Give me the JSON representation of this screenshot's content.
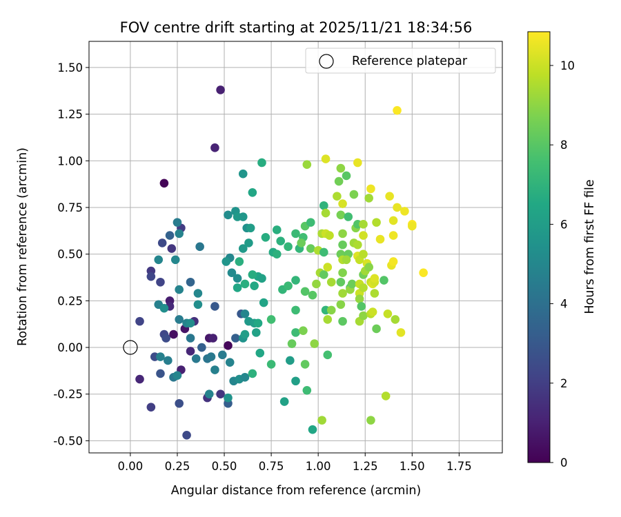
{
  "chart_data": {
    "type": "scatter",
    "title": "FOV centre drift starting at 2025/11/21 18:34:56",
    "xlabel": "Angular distance from reference (arcmin)",
    "ylabel": "Rotation from reference (arcmin)",
    "xlim": [
      -0.22,
      1.98
    ],
    "ylim": [
      -0.565,
      1.64
    ],
    "xticks": [
      "0.00",
      "0.25",
      "0.50",
      "0.75",
      "1.00",
      "1.25",
      "1.50",
      "1.75"
    ],
    "yticks": [
      "-0.50",
      "-0.25",
      "0.00",
      "0.25",
      "0.50",
      "0.75",
      "1.00",
      "1.25",
      "1.50"
    ],
    "grid": true,
    "legend": {
      "position": "top-right",
      "entries": [
        "Reference platepar"
      ]
    },
    "reference_point": {
      "x": 0.0,
      "y": 0.0,
      "label": "Reference platepar",
      "marker": "open-circle"
    },
    "colorbar": {
      "label": "Hours from first FF file",
      "range": [
        0,
        10.85
      ],
      "ticks": [
        "0",
        "2",
        "4",
        "6",
        "8",
        "10"
      ],
      "colormap": "viridis",
      "colormap_stops": [
        "#440154",
        "#482475",
        "#414487",
        "#355f8d",
        "#2a788e",
        "#21918c",
        "#22a884",
        "#44bf70",
        "#7ad151",
        "#bddf26",
        "#fde725"
      ]
    },
    "points": [
      {
        "x": 0.18,
        "y": 0.88,
        "c": 0.1
      },
      {
        "x": 0.48,
        "y": 1.38,
        "c": 1.0
      },
      {
        "x": 0.45,
        "y": 1.07,
        "c": 1.1
      },
      {
        "x": 0.52,
        "y": 0.01,
        "c": 0.2
      },
      {
        "x": 0.23,
        "y": 0.07,
        "c": 0.4
      },
      {
        "x": 0.29,
        "y": 0.1,
        "c": 0.6
      },
      {
        "x": 0.21,
        "y": 0.25,
        "c": 0.9
      },
      {
        "x": 0.21,
        "y": 0.22,
        "c": 1.3
      },
      {
        "x": 0.42,
        "y": 0.05,
        "c": 0.7
      },
      {
        "x": 0.44,
        "y": 0.05,
        "c": 1.0
      },
      {
        "x": 0.27,
        "y": -0.12,
        "c": 1.0
      },
      {
        "x": 0.32,
        "y": -0.02,
        "c": 1.2
      },
      {
        "x": 0.34,
        "y": 0.14,
        "c": 1.5
      },
      {
        "x": 0.41,
        "y": -0.27,
        "c": 1.6
      },
      {
        "x": 0.48,
        "y": -0.25,
        "c": 1.7
      },
      {
        "x": 0.05,
        "y": -0.17,
        "c": 1.2
      },
      {
        "x": 0.11,
        "y": -0.32,
        "c": 2.0
      },
      {
        "x": 0.3,
        "y": -0.47,
        "c": 2.4
      },
      {
        "x": 0.26,
        "y": -0.3,
        "c": 2.6
      },
      {
        "x": 0.05,
        "y": 0.14,
        "c": 2.2
      },
      {
        "x": 0.13,
        "y": -0.05,
        "c": 2.5
      },
      {
        "x": 0.16,
        "y": -0.14,
        "c": 2.8
      },
      {
        "x": 0.18,
        "y": 0.07,
        "c": 2.3
      },
      {
        "x": 0.19,
        "y": 0.05,
        "c": 2.5
      },
      {
        "x": 0.11,
        "y": 0.41,
        "c": 1.8
      },
      {
        "x": 0.11,
        "y": 0.38,
        "c": 2.3
      },
      {
        "x": 0.16,
        "y": 0.35,
        "c": 2.2
      },
      {
        "x": 0.17,
        "y": 0.56,
        "c": 2.4
      },
      {
        "x": 0.22,
        "y": 0.53,
        "c": 1.7
      },
      {
        "x": 0.27,
        "y": 0.64,
        "c": 1.9
      },
      {
        "x": 0.21,
        "y": 0.6,
        "c": 3.4
      },
      {
        "x": 0.45,
        "y": 0.22,
        "c": 3.0
      },
      {
        "x": 0.52,
        "y": -0.3,
        "c": 3.2
      },
      {
        "x": 0.38,
        "y": 0.0,
        "c": 3.3
      },
      {
        "x": 0.56,
        "y": 0.05,
        "c": 3.3
      },
      {
        "x": 0.32,
        "y": 0.35,
        "c": 3.5
      },
      {
        "x": 0.59,
        "y": 0.18,
        "c": 3.0
      },
      {
        "x": 0.37,
        "y": 0.54,
        "c": 4.3
      },
      {
        "x": 0.25,
        "y": 0.67,
        "c": 4.5
      },
      {
        "x": 0.26,
        "y": 0.61,
        "c": 4.8
      },
      {
        "x": 0.15,
        "y": 0.47,
        "c": 4.9
      },
      {
        "x": 0.24,
        "y": 0.47,
        "c": 5.0
      },
      {
        "x": 0.15,
        "y": 0.23,
        "c": 4.7
      },
      {
        "x": 0.18,
        "y": 0.21,
        "c": 5.3
      },
      {
        "x": 0.26,
        "y": 0.31,
        "c": 4.8
      },
      {
        "x": 0.36,
        "y": 0.29,
        "c": 5.0
      },
      {
        "x": 0.36,
        "y": 0.23,
        "c": 5.3
      },
      {
        "x": 0.26,
        "y": 0.15,
        "c": 4.5
      },
      {
        "x": 0.3,
        "y": 0.13,
        "c": 4.8
      },
      {
        "x": 0.32,
        "y": 0.13,
        "c": 5.2
      },
      {
        "x": 0.32,
        "y": 0.05,
        "c": 4.3
      },
      {
        "x": 0.35,
        "y": -0.06,
        "c": 4.4
      },
      {
        "x": 0.16,
        "y": -0.05,
        "c": 4.7
      },
      {
        "x": 0.2,
        "y": -0.07,
        "c": 4.6
      },
      {
        "x": 0.23,
        "y": -0.16,
        "c": 4.3
      },
      {
        "x": 0.25,
        "y": -0.15,
        "c": 4.9
      },
      {
        "x": 0.41,
        "y": -0.06,
        "c": 4.2
      },
      {
        "x": 0.43,
        "y": -0.05,
        "c": 4.4
      },
      {
        "x": 0.42,
        "y": -0.25,
        "c": 4.8
      },
      {
        "x": 0.45,
        "y": -0.12,
        "c": 4.7
      },
      {
        "x": 0.49,
        "y": -0.04,
        "c": 4.5
      },
      {
        "x": 0.53,
        "y": -0.08,
        "c": 4.8
      },
      {
        "x": 0.52,
        "y": -0.27,
        "c": 5.5
      },
      {
        "x": 0.55,
        "y": -0.18,
        "c": 4.9
      },
      {
        "x": 0.58,
        "y": -0.17,
        "c": 5.3
      },
      {
        "x": 0.61,
        "y": -0.16,
        "c": 5.0
      },
      {
        "x": 0.53,
        "y": 0.48,
        "c": 5.0
      },
      {
        "x": 0.51,
        "y": 0.46,
        "c": 5.6
      },
      {
        "x": 0.54,
        "y": 0.4,
        "c": 5.1
      },
      {
        "x": 0.57,
        "y": 0.37,
        "c": 5.2
      },
      {
        "x": 0.52,
        "y": 0.71,
        "c": 5.2
      },
      {
        "x": 0.56,
        "y": 0.73,
        "c": 5.5
      },
      {
        "x": 0.57,
        "y": 0.7,
        "c": 5.8
      },
      {
        "x": 0.6,
        "y": 0.7,
        "c": 5.7
      },
      {
        "x": 0.6,
        "y": 0.93,
        "c": 5.6
      },
      {
        "x": 0.62,
        "y": 0.64,
        "c": 5.4
      },
      {
        "x": 0.64,
        "y": 0.64,
        "c": 6.0
      },
      {
        "x": 0.6,
        "y": 0.53,
        "c": 5.8
      },
      {
        "x": 0.63,
        "y": 0.56,
        "c": 5.9
      },
      {
        "x": 0.61,
        "y": 0.18,
        "c": 4.9
      },
      {
        "x": 0.63,
        "y": 0.14,
        "c": 5.8
      },
      {
        "x": 0.57,
        "y": 0.32,
        "c": 6.4
      },
      {
        "x": 0.66,
        "y": 0.13,
        "c": 6.0
      },
      {
        "x": 0.68,
        "y": 0.13,
        "c": 6.5
      },
      {
        "x": 0.6,
        "y": 0.05,
        "c": 5.5
      },
      {
        "x": 0.61,
        "y": 0.07,
        "c": 6.0
      },
      {
        "x": 0.67,
        "y": 0.08,
        "c": 6.2
      },
      {
        "x": 0.69,
        "y": -0.03,
        "c": 6.4
      },
      {
        "x": 0.71,
        "y": 0.24,
        "c": 6.3
      },
      {
        "x": 0.68,
        "y": 0.38,
        "c": 6.3
      },
      {
        "x": 0.61,
        "y": 0.34,
        "c": 6.8
      },
      {
        "x": 0.65,
        "y": 0.39,
        "c": 6.7
      },
      {
        "x": 0.66,
        "y": 0.33,
        "c": 6.5
      },
      {
        "x": 0.7,
        "y": 0.37,
        "c": 6.2
      },
      {
        "x": 0.58,
        "y": 0.46,
        "c": 6.8
      },
      {
        "x": 0.65,
        "y": 0.83,
        "c": 6.4
      },
      {
        "x": 0.7,
        "y": 0.99,
        "c": 6.7
      },
      {
        "x": 0.72,
        "y": 0.59,
        "c": 6.7
      },
      {
        "x": 0.65,
        "y": -0.14,
        "c": 6.9
      },
      {
        "x": 0.75,
        "y": -0.09,
        "c": 7.3
      },
      {
        "x": 0.75,
        "y": 0.15,
        "c": 7.5
      },
      {
        "x": 0.76,
        "y": 0.51,
        "c": 6.6
      },
      {
        "x": 0.78,
        "y": 0.63,
        "c": 6.8
      },
      {
        "x": 0.78,
        "y": 0.5,
        "c": 6.9
      },
      {
        "x": 0.8,
        "y": 0.57,
        "c": 6.9
      },
      {
        "x": 0.81,
        "y": 0.31,
        "c": 7.1
      },
      {
        "x": 0.84,
        "y": 0.54,
        "c": 7.1
      },
      {
        "x": 0.82,
        "y": -0.29,
        "c": 6.2
      },
      {
        "x": 0.85,
        "y": -0.07,
        "c": 6.0
      },
      {
        "x": 0.84,
        "y": 0.33,
        "c": 7.3
      },
      {
        "x": 0.88,
        "y": 0.36,
        "c": 7.1
      },
      {
        "x": 0.88,
        "y": -0.18,
        "c": 6.1
      },
      {
        "x": 0.88,
        "y": 0.08,
        "c": 7.4
      },
      {
        "x": 0.88,
        "y": 0.2,
        "c": 7.4
      },
      {
        "x": 0.86,
        "y": 0.02,
        "c": 8.3
      },
      {
        "x": 0.88,
        "y": 0.61,
        "c": 7.3
      },
      {
        "x": 0.9,
        "y": 0.53,
        "c": 7.1
      },
      {
        "x": 0.92,
        "y": 0.59,
        "c": 7.5
      },
      {
        "x": 0.91,
        "y": 0.56,
        "c": 8.4
      },
      {
        "x": 0.93,
        "y": 0.65,
        "c": 8.0
      },
      {
        "x": 0.92,
        "y": 0.09,
        "c": 8.7
      },
      {
        "x": 0.93,
        "y": 0.3,
        "c": 7.9
      },
      {
        "x": 0.93,
        "y": -0.09,
        "c": 8.2
      },
      {
        "x": 0.94,
        "y": -0.23,
        "c": 7.4
      },
      {
        "x": 0.97,
        "y": -0.44,
        "c": 6.4
      },
      {
        "x": 0.94,
        "y": 0.98,
        "c": 9.2
      },
      {
        "x": 0.96,
        "y": 0.67,
        "c": 7.4
      },
      {
        "x": 0.96,
        "y": 0.53,
        "c": 8.3
      },
      {
        "x": 0.97,
        "y": 0.28,
        "c": 8.0
      },
      {
        "x": 0.98,
        "y": 0.02,
        "c": 9.0
      },
      {
        "x": 0.99,
        "y": 0.34,
        "c": 9.1
      },
      {
        "x": 1.0,
        "y": 0.52,
        "c": 9.5
      },
      {
        "x": 1.01,
        "y": 0.4,
        "c": 9.4
      },
      {
        "x": 1.02,
        "y": 0.61,
        "c": 9.5
      },
      {
        "x": 1.03,
        "y": 0.39,
        "c": 8.2
      },
      {
        "x": 1.03,
        "y": 0.51,
        "c": 7.4
      },
      {
        "x": 1.04,
        "y": 0.61,
        "c": 10.0
      },
      {
        "x": 1.04,
        "y": 1.01,
        "c": 10.3
      },
      {
        "x": 1.03,
        "y": 0.76,
        "c": 7.0
      },
      {
        "x": 1.04,
        "y": 0.2,
        "c": 7.1
      },
      {
        "x": 1.04,
        "y": 0.72,
        "c": 9.4
      },
      {
        "x": 1.05,
        "y": -0.04,
        "c": 7.6
      },
      {
        "x": 1.05,
        "y": 0.15,
        "c": 9.4
      },
      {
        "x": 1.05,
        "y": 0.43,
        "c": 10.0
      },
      {
        "x": 1.06,
        "y": 0.6,
        "c": 9.8
      },
      {
        "x": 1.07,
        "y": 0.2,
        "c": 8.9
      },
      {
        "x": 1.07,
        "y": 0.35,
        "c": 9.4
      },
      {
        "x": 1.02,
        "y": -0.39,
        "c": 9.3
      },
      {
        "x": 1.1,
        "y": 0.81,
        "c": 9.5
      },
      {
        "x": 1.11,
        "y": 0.89,
        "c": 8.5
      },
      {
        "x": 1.12,
        "y": 0.71,
        "c": 8.6
      },
      {
        "x": 1.12,
        "y": 0.96,
        "c": 9.0
      },
      {
        "x": 1.12,
        "y": 0.5,
        "c": 8.4
      },
      {
        "x": 1.12,
        "y": 0.35,
        "c": 8.2
      },
      {
        "x": 1.12,
        "y": 0.23,
        "c": 8.9
      },
      {
        "x": 1.13,
        "y": 0.77,
        "c": 10.2
      },
      {
        "x": 1.13,
        "y": 0.61,
        "c": 9.0
      },
      {
        "x": 1.13,
        "y": 0.55,
        "c": 8.3
      },
      {
        "x": 1.13,
        "y": 0.47,
        "c": 9.6
      },
      {
        "x": 1.13,
        "y": 0.4,
        "c": 8.8
      },
      {
        "x": 1.13,
        "y": 0.29,
        "c": 9.3
      },
      {
        "x": 1.13,
        "y": 0.14,
        "c": 8.1
      },
      {
        "x": 1.15,
        "y": 0.92,
        "c": 8.0
      },
      {
        "x": 1.16,
        "y": 0.7,
        "c": 7.5
      },
      {
        "x": 1.16,
        "y": 0.5,
        "c": 8.3
      },
      {
        "x": 1.15,
        "y": 0.47,
        "c": 9.3
      },
      {
        "x": 1.17,
        "y": 0.32,
        "c": 8.0
      },
      {
        "x": 1.17,
        "y": 0.31,
        "c": 9.1
      },
      {
        "x": 1.18,
        "y": 0.34,
        "c": 8.4
      },
      {
        "x": 1.19,
        "y": 0.82,
        "c": 8.7
      },
      {
        "x": 1.19,
        "y": 0.56,
        "c": 9.3
      },
      {
        "x": 1.2,
        "y": 0.64,
        "c": 8.9
      },
      {
        "x": 1.21,
        "y": 0.99,
        "c": 10.5
      },
      {
        "x": 1.21,
        "y": 0.66,
        "c": 7.9
      },
      {
        "x": 1.21,
        "y": 0.55,
        "c": 9.5
      },
      {
        "x": 1.21,
        "y": 0.49,
        "c": 10.3
      },
      {
        "x": 1.22,
        "y": 0.29,
        "c": 10.0
      },
      {
        "x": 1.22,
        "y": 0.26,
        "c": 9.1
      },
      {
        "x": 1.22,
        "y": 0.14,
        "c": 9.4
      },
      {
        "x": 1.22,
        "y": 0.34,
        "c": 9.9
      },
      {
        "x": 1.22,
        "y": 0.47,
        "c": 9.9
      },
      {
        "x": 1.23,
        "y": 0.22,
        "c": 7.9
      },
      {
        "x": 1.24,
        "y": 0.17,
        "c": 9.0
      },
      {
        "x": 1.24,
        "y": 0.6,
        "c": 10.1
      },
      {
        "x": 1.24,
        "y": 0.66,
        "c": 9.4
      },
      {
        "x": 1.24,
        "y": 0.5,
        "c": 9.7
      },
      {
        "x": 1.24,
        "y": 0.39,
        "c": 8.5
      },
      {
        "x": 1.24,
        "y": 0.32,
        "c": 9.6
      },
      {
        "x": 1.25,
        "y": 0.41,
        "c": 9.3
      },
      {
        "x": 1.26,
        "y": 0.45,
        "c": 10.2
      },
      {
        "x": 1.27,
        "y": 0.8,
        "c": 9.3
      },
      {
        "x": 1.27,
        "y": 0.43,
        "c": 8.9
      },
      {
        "x": 1.28,
        "y": 0.35,
        "c": 9.9
      },
      {
        "x": 1.28,
        "y": 0.85,
        "c": 10.6
      },
      {
        "x": 1.28,
        "y": 0.18,
        "c": 9.7
      },
      {
        "x": 1.29,
        "y": 0.34,
        "c": 10.3
      },
      {
        "x": 1.3,
        "y": 0.35,
        "c": 10.1
      },
      {
        "x": 1.29,
        "y": 0.19,
        "c": 10.0
      },
      {
        "x": 1.3,
        "y": 0.29,
        "c": 9.5
      },
      {
        "x": 1.3,
        "y": 0.37,
        "c": 10.3
      },
      {
        "x": 1.31,
        "y": 0.67,
        "c": 9.6
      },
      {
        "x": 1.31,
        "y": 0.1,
        "c": 8.4
      },
      {
        "x": 1.28,
        "y": -0.39,
        "c": 9.0
      },
      {
        "x": 1.33,
        "y": 0.58,
        "c": 10.5
      },
      {
        "x": 1.35,
        "y": 0.36,
        "c": 7.9
      },
      {
        "x": 1.36,
        "y": -0.26,
        "c": 9.6
      },
      {
        "x": 1.37,
        "y": 0.18,
        "c": 9.9
      },
      {
        "x": 1.38,
        "y": 0.81,
        "c": 10.5
      },
      {
        "x": 1.39,
        "y": 0.44,
        "c": 10.5
      },
      {
        "x": 1.4,
        "y": 0.46,
        "c": 10.7
      },
      {
        "x": 1.4,
        "y": 0.6,
        "c": 10.6
      },
      {
        "x": 1.4,
        "y": 0.68,
        "c": 10.4
      },
      {
        "x": 1.41,
        "y": 0.15,
        "c": 9.4
      },
      {
        "x": 1.42,
        "y": 0.75,
        "c": 10.5
      },
      {
        "x": 1.42,
        "y": 1.27,
        "c": 10.8
      },
      {
        "x": 1.44,
        "y": 0.08,
        "c": 10.4
      },
      {
        "x": 1.46,
        "y": 0.73,
        "c": 10.6
      },
      {
        "x": 1.5,
        "y": 0.66,
        "c": 10.8
      },
      {
        "x": 1.5,
        "y": 0.65,
        "c": 10.6
      },
      {
        "x": 1.56,
        "y": 0.4,
        "c": 10.8
      }
    ]
  }
}
